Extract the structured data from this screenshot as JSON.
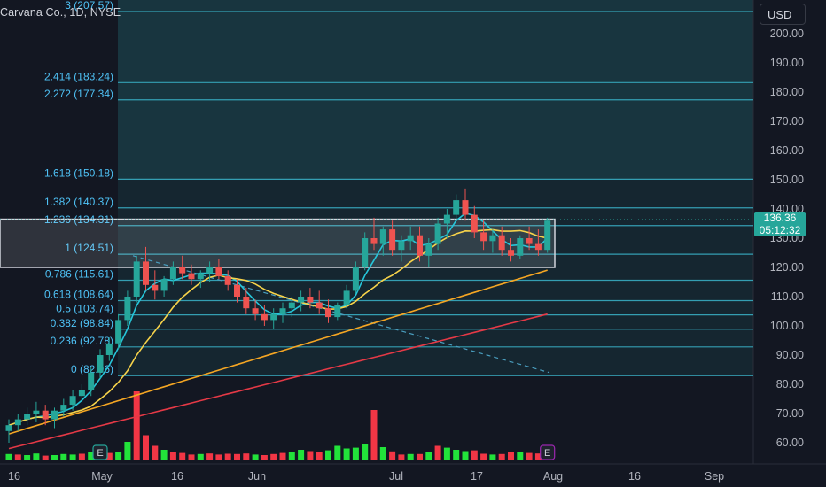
{
  "header": {
    "symbol_title": "Carvana Co., 1D, NYSE",
    "currency_button": "USD"
  },
  "last_price": {
    "value": "136.36",
    "countdown": "05:12:32",
    "price": 136.36
  },
  "colors": {
    "background": "#131722",
    "up_candle": "#26a69a",
    "down_candle": "#ef5350",
    "fib_line": "#3ab3c9",
    "fib_text": "#4fc3f7",
    "ma_fast": "#26c6da",
    "ma_yellow": "#f7d34a",
    "ma_orange": "#f5a623",
    "ma_red": "#e53946",
    "volume_up": "#22e33a",
    "volume_down": "#f23645",
    "axis_text": "#b2b5be",
    "trend_dash": "#4a9fc0"
  },
  "chart_data": {
    "type": "candlestick",
    "y_axis": {
      "min": 55,
      "max": 210,
      "ticks": [
        60,
        70,
        80,
        90,
        100,
        110,
        120,
        130,
        140,
        150,
        160,
        170,
        180,
        190,
        200
      ]
    },
    "x_axis": {
      "labels": [
        "16",
        "May",
        "16",
        "Jun",
        "Jul",
        "17",
        "Aug",
        "16",
        "Sep"
      ]
    },
    "fib_levels": [
      {
        "label": "0 (82.96)",
        "price": 82.96
      },
      {
        "label": "0.236 (92.78)",
        "price": 92.78
      },
      {
        "label": "0.382 (98.84)",
        "price": 98.84
      },
      {
        "label": "0.5 (103.74)",
        "price": 103.74
      },
      {
        "label": "0.618 (108.64)",
        "price": 108.64
      },
      {
        "label": "0.786 (115.61)",
        "price": 115.61
      },
      {
        "label": "1 (124.51)",
        "price": 124.51
      },
      {
        "label": "1.236 (134.31)",
        "price": 134.31
      },
      {
        "label": "1.382 (140.37)",
        "price": 140.37
      },
      {
        "label": "1.618 (150.18)",
        "price": 150.18
      },
      {
        "label": "2.272 (177.34)",
        "price": 177.34
      },
      {
        "label": "2.414 (183.24)",
        "price": 183.24
      },
      {
        "label": "3 (207.57)",
        "price": 207.57
      }
    ],
    "consolidation_box": {
      "price_top": 136.5,
      "price_bottom": 120.0
    },
    "candles": [
      [
        64,
        68,
        60,
        66
      ],
      [
        66,
        70,
        64,
        68
      ],
      [
        68,
        72,
        66,
        70
      ],
      [
        70,
        74,
        67,
        71
      ],
      [
        71,
        73,
        66,
        68
      ],
      [
        68,
        72,
        65,
        71
      ],
      [
        71,
        75,
        69,
        73
      ],
      [
        73,
        78,
        71,
        76
      ],
      [
        76,
        80,
        74,
        78
      ],
      [
        78,
        86,
        76,
        84
      ],
      [
        84,
        92,
        82,
        90
      ],
      [
        90,
        96,
        88,
        94
      ],
      [
        94,
        104,
        92,
        102
      ],
      [
        102,
        112,
        100,
        110
      ],
      [
        110,
        124,
        108,
        122
      ],
      [
        122,
        127,
        112,
        114
      ],
      [
        114,
        119,
        109,
        112
      ],
      [
        112,
        117,
        110,
        116
      ],
      [
        116,
        122,
        114,
        120
      ],
      [
        120,
        124,
        116,
        118
      ],
      [
        118,
        121,
        114,
        116
      ],
      [
        116,
        119,
        113,
        118
      ],
      [
        118,
        122,
        115,
        120
      ],
      [
        120,
        123,
        116,
        117
      ],
      [
        117,
        119,
        112,
        114
      ],
      [
        114,
        116,
        108,
        110
      ],
      [
        110,
        113,
        104,
        106
      ],
      [
        106,
        109,
        102,
        104
      ],
      [
        104,
        107,
        100,
        102
      ],
      [
        102,
        106,
        99,
        104
      ],
      [
        104,
        108,
        101,
        106
      ],
      [
        106,
        110,
        103,
        108
      ],
      [
        108,
        112,
        105,
        110
      ],
      [
        110,
        113,
        106,
        108
      ],
      [
        108,
        112,
        104,
        106
      ],
      [
        106,
        109,
        101,
        103
      ],
      [
        103,
        108,
        102,
        107
      ],
      [
        107,
        114,
        106,
        112
      ],
      [
        112,
        122,
        111,
        120
      ],
      [
        120,
        132,
        119,
        130
      ],
      [
        130,
        137,
        126,
        128
      ],
      [
        128,
        134,
        124,
        133
      ],
      [
        133,
        136,
        124,
        126
      ],
      [
        126,
        131,
        122,
        129
      ],
      [
        129,
        134,
        126,
        131
      ],
      [
        131,
        134,
        122,
        124
      ],
      [
        124,
        130,
        120,
        128
      ],
      [
        128,
        137,
        126,
        135
      ],
      [
        135,
        140,
        130,
        138
      ],
      [
        138,
        145,
        136,
        143
      ],
      [
        143,
        147,
        136,
        138
      ],
      [
        138,
        141,
        130,
        132
      ],
      [
        132,
        136,
        126,
        129
      ],
      [
        129,
        133,
        125,
        131
      ],
      [
        131,
        134,
        124,
        126
      ],
      [
        126,
        130,
        122,
        124
      ],
      [
        124,
        131,
        123,
        130
      ],
      [
        130,
        134,
        126,
        128
      ],
      [
        128,
        133,
        124,
        126
      ],
      [
        126,
        137,
        125,
        136
      ]
    ],
    "volume": [
      [
        24,
        "u"
      ],
      [
        22,
        "d"
      ],
      [
        20,
        "u"
      ],
      [
        26,
        "u"
      ],
      [
        18,
        "d"
      ],
      [
        20,
        "u"
      ],
      [
        24,
        "u"
      ],
      [
        22,
        "u"
      ],
      [
        25,
        "d"
      ],
      [
        30,
        "u"
      ],
      [
        35,
        "u"
      ],
      [
        28,
        "d"
      ],
      [
        32,
        "u"
      ],
      [
        70,
        "u"
      ],
      [
        260,
        "d"
      ],
      [
        95,
        "d"
      ],
      [
        55,
        "d"
      ],
      [
        40,
        "u"
      ],
      [
        30,
        "d"
      ],
      [
        28,
        "d"
      ],
      [
        22,
        "d"
      ],
      [
        24,
        "u"
      ],
      [
        26,
        "d"
      ],
      [
        22,
        "d"
      ],
      [
        25,
        "d"
      ],
      [
        24,
        "d"
      ],
      [
        26,
        "d"
      ],
      [
        22,
        "u"
      ],
      [
        20,
        "d"
      ],
      [
        24,
        "d"
      ],
      [
        28,
        "d"
      ],
      [
        32,
        "u"
      ],
      [
        40,
        "u"
      ],
      [
        35,
        "d"
      ],
      [
        30,
        "d"
      ],
      [
        38,
        "u"
      ],
      [
        55,
        "u"
      ],
      [
        45,
        "u"
      ],
      [
        48,
        "u"
      ],
      [
        60,
        "u"
      ],
      [
        190,
        "d"
      ],
      [
        50,
        "u"
      ],
      [
        34,
        "d"
      ],
      [
        22,
        "d"
      ],
      [
        24,
        "u"
      ],
      [
        24,
        "d"
      ],
      [
        30,
        "u"
      ],
      [
        55,
        "d"
      ],
      [
        48,
        "u"
      ],
      [
        40,
        "u"
      ],
      [
        35,
        "u"
      ],
      [
        38,
        "d"
      ],
      [
        25,
        "d"
      ],
      [
        22,
        "u"
      ],
      [
        24,
        "d"
      ],
      [
        30,
        "d"
      ],
      [
        32,
        "u"
      ],
      [
        28,
        "d"
      ],
      [
        26,
        "d"
      ],
      [
        24,
        "u"
      ]
    ],
    "earnings_markers": [
      {
        "label": "E",
        "bar": 10,
        "color": "#26a69a"
      },
      {
        "label": "E",
        "bar": 59,
        "color": "#9c27b0"
      }
    ]
  }
}
